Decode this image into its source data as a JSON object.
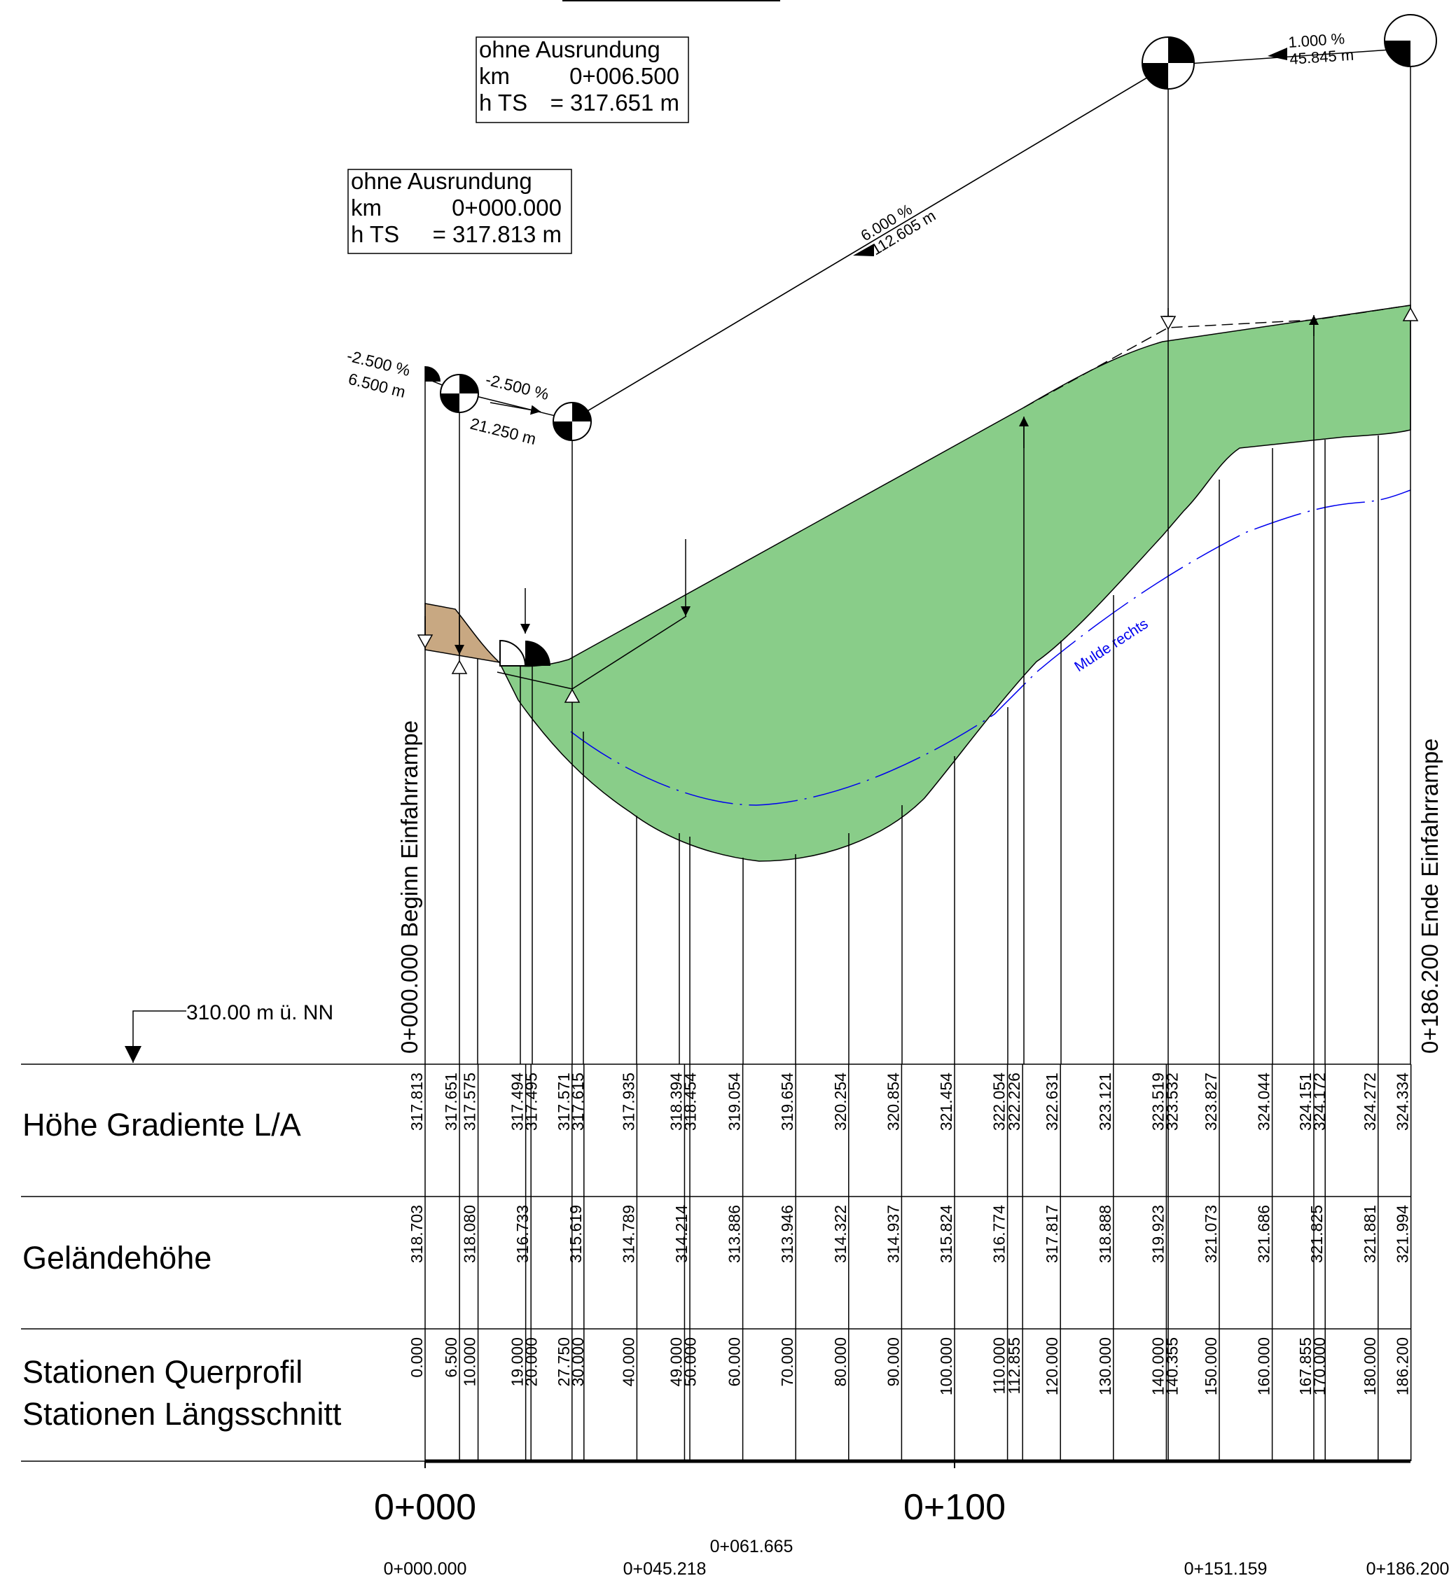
{
  "info_boxes": [
    {
      "line1": "ohne Ausrundung",
      "km_label": "km",
      "km_value": "0+006.500",
      "h_label": "h TS",
      "h_value": "= 317.651 m"
    },
    {
      "line1": "ohne Ausrundung",
      "km_label": "km",
      "km_value": "0+000.000",
      "h_label": "h TS",
      "h_value": "=  317.813 m"
    }
  ],
  "slope_labels": {
    "s1_pct": "-2.500 %",
    "s1_len": "6.500 m",
    "s2_pct": "-2.500 %",
    "s2_len": "21.250 m",
    "s3_pct": "6.000 %",
    "s3_len": "112.605 m",
    "s4_pct": "1.000 %",
    "s4_len": "45.845 m"
  },
  "ditch_label": "Mulde rechts",
  "start_label": "0+000.000  Beginn Einfahrrampe",
  "end_label": "0+186.200  Ende Einfahrrampe",
  "reference_label": "310.00 m ü. NN",
  "row_headers": {
    "gradient": "Höhe Gradiente L/A",
    "terrain": "Geländehöhe",
    "stations_1": "Stationen Querprofil",
    "stations_2": "Stationen Längsschnitt"
  },
  "gradient_values": [
    "317.813",
    "317.651",
    "317.575",
    "317.494",
    "317.495",
    "317.571",
    "317.615",
    "317.935",
    "318.394",
    "318.454",
    "319.054",
    "319.654",
    "320.254",
    "320.854",
    "321.454",
    "322.054",
    "322.226",
    "322.631",
    "323.121",
    "323.519",
    "323.532",
    "323.827",
    "324.044",
    "324.151",
    "324.172",
    "324.272",
    "324.334"
  ],
  "terrain_values": [
    "318.703",
    "318.080",
    "316.733",
    "315.619",
    "314.789",
    "314.214",
    "313.886",
    "313.946",
    "314.322",
    "314.937",
    "315.824",
    "316.774",
    "317.817",
    "318.888",
    "319.923",
    "321.073",
    "321.686",
    "321.825",
    "321.881",
    "321.994"
  ],
  "station_values": [
    "0.000",
    "6.500",
    "10.000",
    "19.000",
    "20.000",
    "27.750",
    "30.000",
    "40.000",
    "49.000",
    "50.000",
    "60.000",
    "70.000",
    "80.000",
    "90.000",
    "100.000",
    "110.000",
    "112.855",
    "120.000",
    "130.000",
    "140.000",
    "140.355",
    "150.000",
    "160.000",
    "167.855",
    "170.000",
    "180.000",
    "186.200"
  ],
  "axis_labels": [
    "0+000",
    "0+100"
  ],
  "bottom_stations": [
    "0+000.000",
    "0+045.218",
    "0+061.665",
    "0+151.159",
    "0+186.200"
  ],
  "colors": {
    "fill": "#89cd89",
    "soil": "#c8a882",
    "ditch": "#0000ee",
    "line": "#000000"
  }
}
